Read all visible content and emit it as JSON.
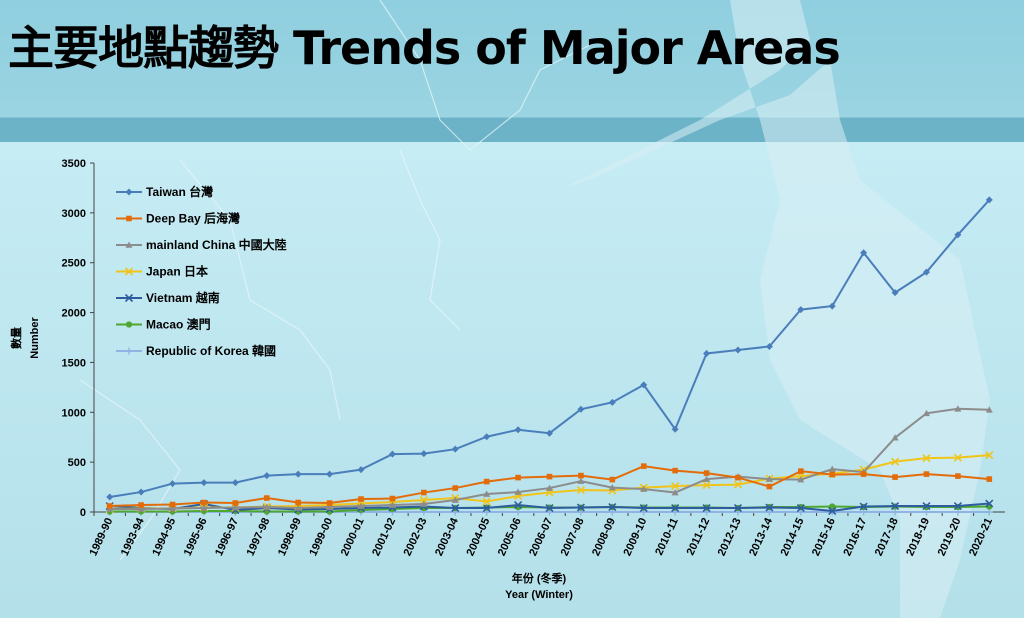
{
  "page_title": "主要地點趨勢 Trends of Major Areas",
  "chart_data": {
    "type": "line",
    "xlabel_zh": "年份 (冬季)",
    "xlabel_en": "Year (Winter)",
    "ylabel_zh": "數量",
    "ylabel_en": "Number",
    "ylim": [
      0,
      3500
    ],
    "yticks": [
      0,
      500,
      1000,
      1500,
      2000,
      2500,
      3000,
      3500
    ],
    "legend_position": "top-left",
    "grid": false,
    "categories": [
      "1989-90",
      "1993-94",
      "1994-95",
      "1995-96",
      "1996-97",
      "1997-98",
      "1998-99",
      "1999-00",
      "2000-01",
      "2001-02",
      "2002-03",
      "2003-04",
      "2004-05",
      "2005-06",
      "2006-07",
      "2007-08",
      "2008-09",
      "2009-10",
      "2010-11",
      "2011-12",
      "2012-13",
      "2013-14",
      "2014-15",
      "2015-16",
      "2016-17",
      "2017-18",
      "2018-19",
      "2019-20",
      "2020-21"
    ],
    "series": [
      {
        "name": "Taiwan 台灣",
        "color": "#4a7ebb",
        "marker": "diamond",
        "values": [
          150,
          200,
          285,
          295,
          295,
          365,
          380,
          380,
          425,
          580,
          585,
          630,
          755,
          825,
          790,
          1030,
          1100,
          1275,
          830,
          1590,
          1625,
          1660,
          2030,
          2065,
          2600,
          2200,
          2405,
          2780,
          3130
        ]
      },
      {
        "name": "Deep Bay 后海灣",
        "color": "#e36c0a",
        "marker": "square",
        "values": [
          60,
          70,
          75,
          95,
          90,
          140,
          95,
          90,
          130,
          135,
          195,
          240,
          305,
          345,
          355,
          365,
          325,
          460,
          415,
          390,
          345,
          255,
          410,
          375,
          380,
          350,
          380,
          360,
          330
        ]
      },
      {
        "name": "mainland China 中國大陸",
        "color": "#8c8c8c",
        "marker": "triangle",
        "values": [
          30,
          30,
          35,
          40,
          45,
          50,
          40,
          50,
          60,
          70,
          80,
          120,
          180,
          200,
          240,
          310,
          245,
          230,
          195,
          330,
          355,
          330,
          325,
          430,
          400,
          745,
          990,
          1035,
          1025
        ]
      },
      {
        "name": "Japan 日本",
        "color": "#f0c419",
        "marker": "x",
        "values": [
          30,
          35,
          35,
          45,
          45,
          55,
          60,
          70,
          85,
          100,
          120,
          140,
          105,
          160,
          195,
          220,
          215,
          245,
          260,
          270,
          275,
          335,
          360,
          385,
          425,
          505,
          540,
          545,
          570
        ]
      },
      {
        "name": "Vietnam 越南",
        "color": "#2e5d9f",
        "marker": "x",
        "values": [
          60,
          40,
          30,
          80,
          20,
          40,
          25,
          30,
          40,
          45,
          55,
          40,
          40,
          70,
          40,
          45,
          50,
          40,
          40,
          40,
          40,
          45,
          40,
          10,
          55,
          60,
          60,
          60,
          85
        ]
      },
      {
        "name": "Macao 澳門",
        "color": "#4ea72e",
        "marker": "circle",
        "values": [
          5,
          5,
          5,
          10,
          10,
          5,
          5,
          5,
          20,
          30,
          40,
          40,
          45,
          50,
          45,
          45,
          50,
          45,
          45,
          45,
          40,
          50,
          50,
          55,
          50,
          55,
          50,
          50,
          55
        ]
      },
      {
        "name": "Republic of Korea 韓國",
        "color": "#8fb4e3",
        "marker": "plus",
        "values": [
          0,
          0,
          0,
          0,
          0,
          0,
          0,
          0,
          0,
          0,
          0,
          0,
          0,
          0,
          0,
          0,
          0,
          0,
          0,
          0,
          0,
          0,
          0,
          0,
          0,
          0,
          0,
          0,
          0
        ]
      }
    ]
  }
}
